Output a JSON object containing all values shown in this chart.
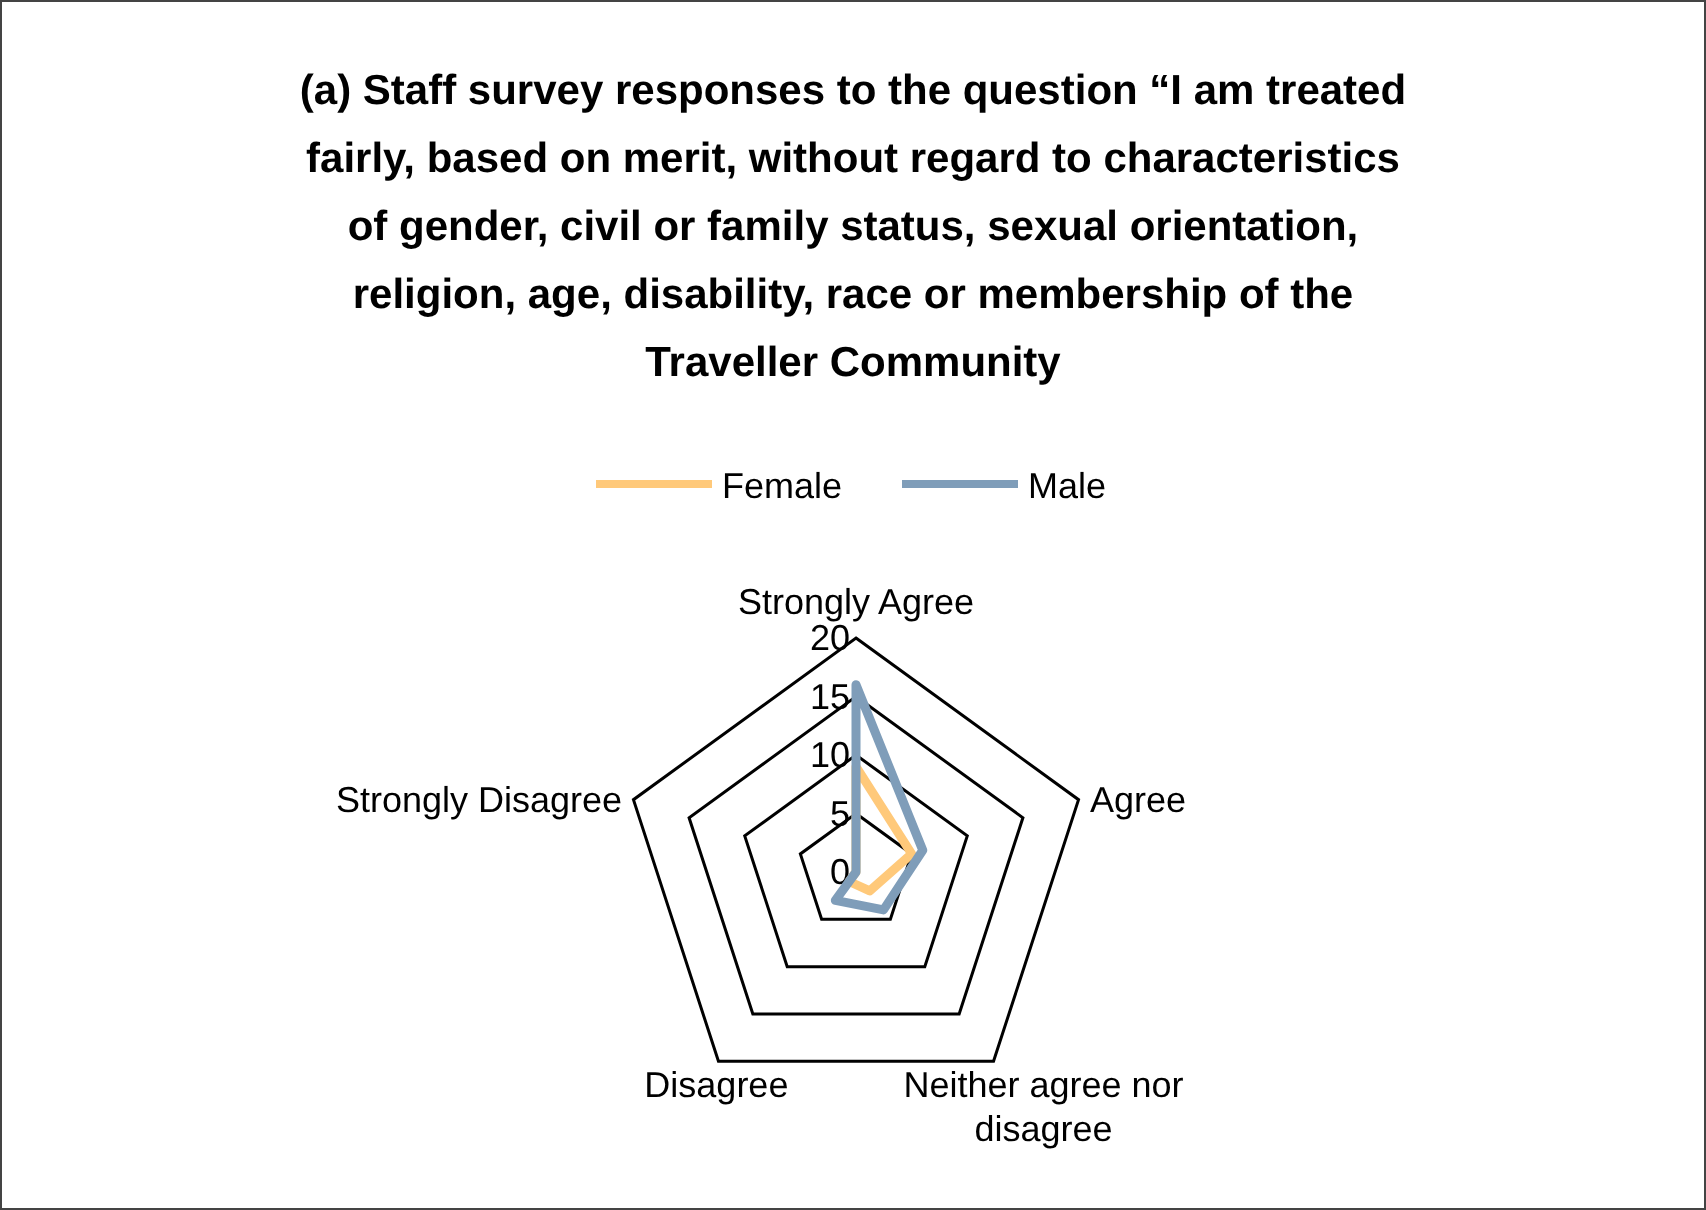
{
  "chart_data": {
    "type": "radar",
    "title": "(a) Staff survey responses to the question “I am treated fairly, based on merit, without regard to characteristics of gender, civil or family status, sexual orientation, religion, age, disability, race or membership of the Traveller Community",
    "categories": [
      "Strongly Agree",
      "Agree",
      "Neither agree nor disagree",
      "Disagree",
      "Strongly Disagree"
    ],
    "series": [
      {
        "name": "Female",
        "color": "#ffc97a",
        "values": [
          9,
          5,
          2,
          1,
          0
        ]
      },
      {
        "name": "Male",
        "color": "#7f9db9",
        "values": [
          16,
          6,
          4,
          3,
          0
        ]
      }
    ],
    "ylim": [
      0,
      20
    ],
    "yticks": [
      0,
      5,
      10,
      15,
      20
    ],
    "legend": "top",
    "marker": "none"
  }
}
